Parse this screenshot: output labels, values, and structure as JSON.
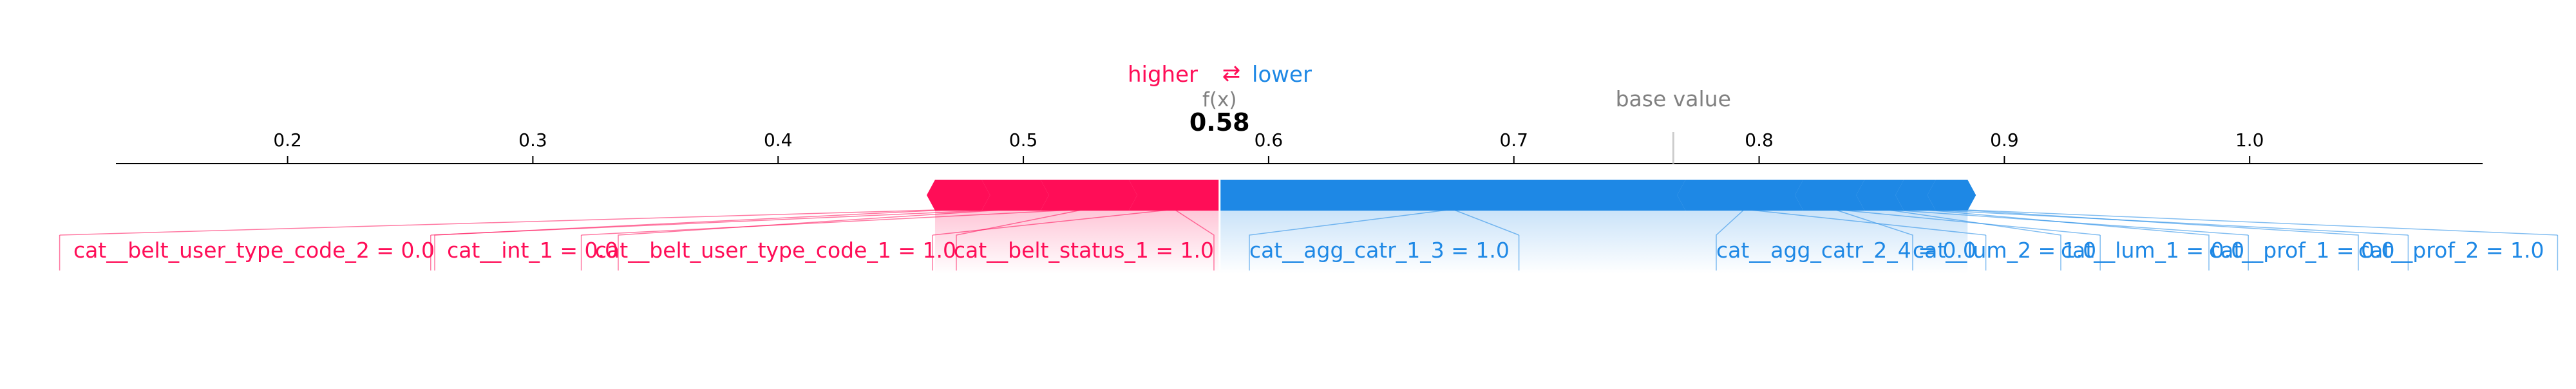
{
  "chart_data": {
    "type": "force-plot",
    "legend": {
      "higher": "higher",
      "arrow": "⇄",
      "lower": "lower"
    },
    "fx_label": "f(x)",
    "fx_value_text": "0.58",
    "fx_value": 0.58,
    "base_value_label": "base value",
    "base_value": 0.765,
    "xlim": [
      0.13,
      1.095
    ],
    "ticks": [
      0.2,
      0.3,
      0.4,
      0.5,
      0.6,
      0.7,
      0.8,
      0.9,
      1.0
    ],
    "tick_labels": [
      "0.2",
      "0.3",
      "0.4",
      "0.5",
      "0.6",
      "0.7",
      "0.8",
      "0.9",
      "1.0"
    ],
    "positive_features": [
      {
        "label": "cat__belt_status_1 = 1.0",
        "start": 0.543,
        "end": 0.58
      },
      {
        "label": "cat__belt_user_type_code_1 = 1.0",
        "start": 0.507,
        "end": 0.543
      },
      {
        "label": "cat__int_1 = 0.0",
        "start": 0.483,
        "end": 0.507
      },
      {
        "label": "cat__belt_user_type_code_2 = 0.0",
        "start": 0.464,
        "end": 0.483
      }
    ],
    "negative_features": [
      {
        "label": "cat__agg_catr_1_3 = 1.0",
        "start": 0.58,
        "end": 0.77
      },
      {
        "label": "cat__agg_catr_2_4 = 0.0",
        "start": 0.77,
        "end": 0.818
      },
      {
        "label": "cat__lum_2 = 1.0",
        "start": 0.818,
        "end": 0.843
      },
      {
        "label": "cat__lum_1 = 0.0",
        "start": 0.843,
        "end": 0.859
      },
      {
        "label": "cat__prof_1 = 0.0",
        "start": 0.859,
        "end": 0.872
      },
      {
        "label": "cat__prof_2 = 1.0",
        "start": 0.872,
        "end": 0.885
      }
    ],
    "colors": {
      "positive": "#ff0d57",
      "negative": "#1e88e5",
      "axis": "#000000",
      "muted": "#808080"
    }
  }
}
